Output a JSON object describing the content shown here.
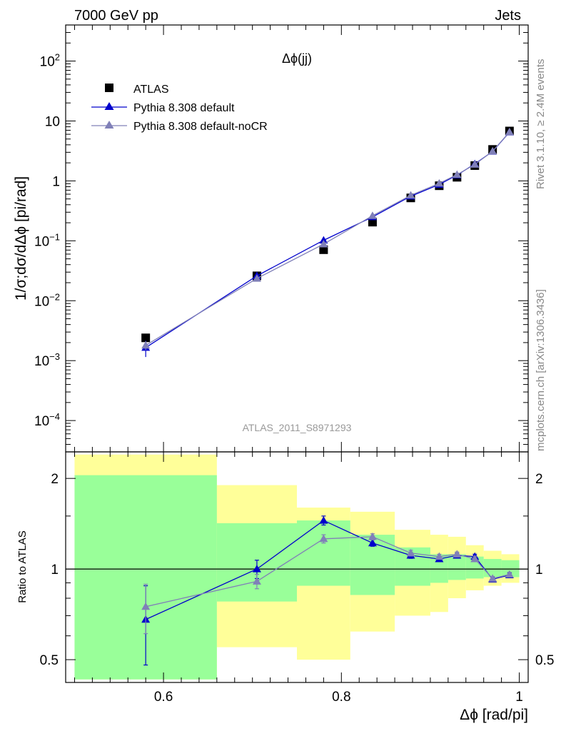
{
  "header": {
    "left_label": "7000 GeV pp",
    "right_label": "Jets"
  },
  "side_text": {
    "rivet": "Rivet 3.1.10, ≥ 2.4M events",
    "mcplots": "mcplots.cern.ch [arXiv:1306.3436]"
  },
  "chart_data": [
    {
      "type": "scatter",
      "title": "Δϕ(jj)",
      "analysis_label": "ATLAS_2011_S8971293",
      "ylabel": "1/σ;dσ/dΔϕ [pi/rad]",
      "yscale": "log",
      "xlim": [
        0.49,
        1.01
      ],
      "ylim": [
        3e-05,
        400
      ],
      "y_tick_labels": [
        "10^-4",
        "10^-3",
        "10^-2",
        "10^-1",
        "1",
        "10",
        "10^2"
      ],
      "legend_position": "top-left",
      "x": [
        0.58,
        0.705,
        0.78,
        0.835,
        0.878,
        0.91,
        0.93,
        0.95,
        0.97,
        0.989
      ],
      "series": [
        {
          "name": "ATLAS",
          "color": "#000000",
          "marker": "square",
          "values": [
            0.0024,
            0.026,
            0.071,
            0.205,
            0.52,
            0.83,
            1.15,
            1.8,
            3.35,
            6.8
          ],
          "errors": [
            0.0001,
            0.0008,
            0.002,
            0.005,
            0.01,
            0.015,
            0.02,
            0.03,
            0.05,
            0.1
          ]
        },
        {
          "name": "Pythia 8.308 default",
          "color": "#0000cc",
          "marker": "triangle",
          "values": [
            0.00165,
            0.026,
            0.102,
            0.25,
            0.555,
            0.87,
            1.25,
            1.92,
            3.1,
            6.5
          ],
          "errors": [
            0.0005,
            0.0012,
            0.004,
            0.006,
            0.015,
            0.02,
            0.03,
            0.04,
            0.05,
            0.08
          ]
        },
        {
          "name": "Pythia 8.308 default-noCR",
          "color": "#8080b8",
          "marker": "triangle",
          "values": [
            0.0018,
            0.0235,
            0.088,
            0.262,
            0.575,
            0.91,
            1.27,
            1.88,
            3.12,
            6.55
          ],
          "errors": [
            0.0003,
            0.0008,
            0.003,
            0.006,
            0.015,
            0.02,
            0.03,
            0.04,
            0.05,
            0.08
          ]
        }
      ]
    },
    {
      "type": "scatter",
      "ylabel": "Ratio to ATLAS",
      "xlabel": "Δϕ [rad/pi]",
      "yscale": "log",
      "xlim": [
        0.49,
        1.01
      ],
      "ylim": [
        0.42,
        2.45
      ],
      "x_tick_labels": [
        "0.6",
        "0.8",
        "1"
      ],
      "y_tick_labels": [
        "0.5",
        "1",
        "2"
      ],
      "reference_line": 1,
      "x": [
        0.58,
        0.705,
        0.78,
        0.835,
        0.878,
        0.91,
        0.93,
        0.95,
        0.97,
        0.989
      ],
      "bin_edges": [
        0.5,
        0.66,
        0.75,
        0.81,
        0.86,
        0.9,
        0.92,
        0.94,
        0.96,
        0.98,
        1.0
      ],
      "bands": [
        {
          "name": "total",
          "color": "#ffff99",
          "low": [
            0.43,
            0.55,
            0.5,
            0.62,
            0.7,
            0.72,
            0.8,
            0.85,
            0.88,
            0.9
          ],
          "high": [
            2.4,
            1.9,
            1.6,
            1.55,
            1.35,
            1.3,
            1.28,
            1.2,
            1.15,
            1.12
          ]
        },
        {
          "name": "stat",
          "color": "#99ff99",
          "low": [
            0.43,
            0.78,
            0.88,
            0.82,
            0.88,
            0.9,
            0.92,
            0.93,
            0.94,
            0.94
          ],
          "high": [
            2.05,
            1.42,
            1.45,
            1.3,
            1.18,
            1.12,
            1.12,
            1.1,
            1.08,
            1.07
          ]
        }
      ],
      "series": [
        {
          "name": "Pythia 8.308 default",
          "color": "#0000cc",
          "marker": "triangle",
          "values": [
            0.68,
            1.0,
            1.45,
            1.22,
            1.11,
            1.08,
            1.11,
            1.1,
            0.925,
            0.955
          ],
          "errors": [
            0.2,
            0.07,
            0.05,
            0.03,
            0.025,
            0.02,
            0.02,
            0.02,
            0.015,
            0.015
          ]
        },
        {
          "name": "Pythia 8.308 default-noCR",
          "color": "#8080b8",
          "marker": "triangle",
          "values": [
            0.75,
            0.91,
            1.26,
            1.28,
            1.13,
            1.1,
            1.12,
            1.08,
            0.93,
            0.96
          ],
          "errors": [
            0.14,
            0.05,
            0.04,
            0.03,
            0.025,
            0.02,
            0.02,
            0.02,
            0.015,
            0.015
          ]
        }
      ]
    }
  ]
}
